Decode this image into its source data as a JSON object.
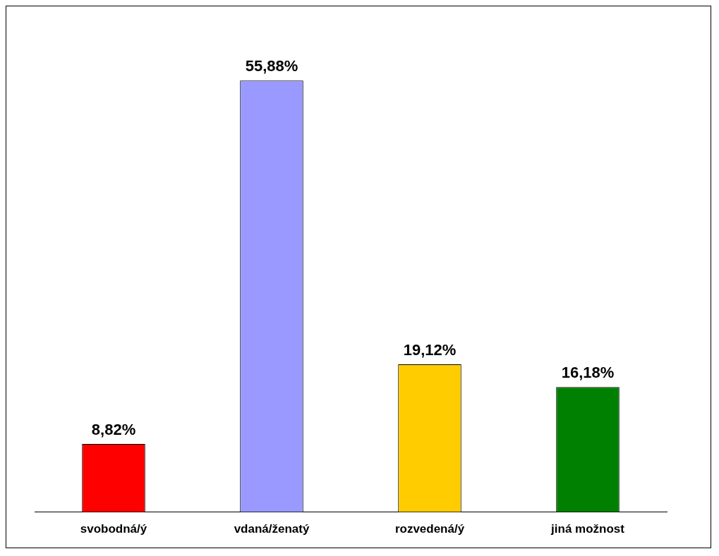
{
  "chart_data": {
    "type": "bar",
    "categories": [
      "svobodná/ý",
      "vdaná/ženatý",
      "rozvedená/ý",
      "jiná možnost"
    ],
    "values": [
      8.82,
      55.88,
      19.12,
      16.18
    ],
    "colors": [
      "#ff0000",
      "#9999ff",
      "#ffcc00",
      "#008000"
    ],
    "value_labels": [
      "8,82%",
      "55,88%",
      "19,12%",
      "16,18%"
    ],
    "grid": false,
    "legend": false
  }
}
